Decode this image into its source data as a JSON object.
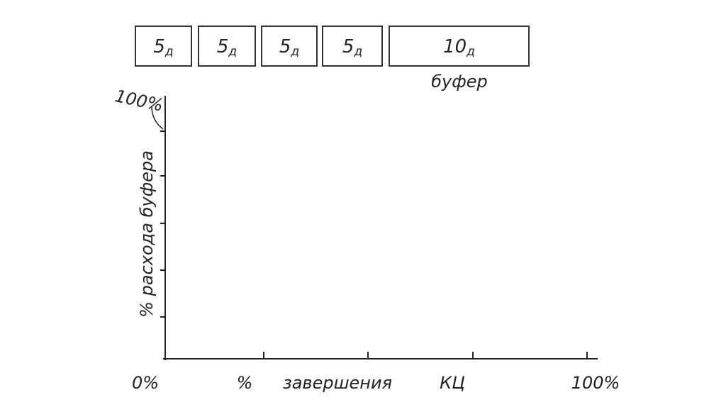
{
  "boxes": [
    {
      "value": "5",
      "sub": "д"
    },
    {
      "value": "5",
      "sub": "д"
    },
    {
      "value": "5",
      "sub": "д"
    },
    {
      "value": "5",
      "sub": "д"
    },
    {
      "value": "10",
      "sub": "д"
    }
  ],
  "buffer_label": "буфер",
  "y_axis": {
    "top_label": "100%",
    "title": "% расхода буфера"
  },
  "x_axis": {
    "origin_label": "0%",
    "title_parts": [
      "%",
      "завершения",
      "КЦ"
    ],
    "end_label": "100%"
  }
}
